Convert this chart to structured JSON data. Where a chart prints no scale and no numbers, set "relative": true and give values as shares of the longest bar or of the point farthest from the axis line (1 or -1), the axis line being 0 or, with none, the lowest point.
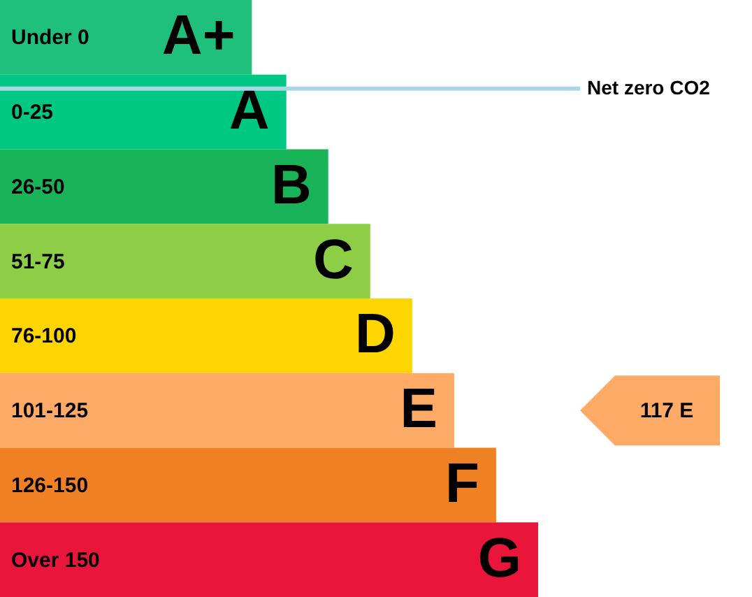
{
  "chart_data": {
    "type": "bar",
    "orientation": "horizontal",
    "relative": true,
    "categories": [
      "Under 0",
      "0-25",
      "26-50",
      "51-75",
      "76-100",
      "101-125",
      "126-150",
      "Over 150"
    ],
    "values": [
      0.468,
      0.532,
      0.61,
      0.688,
      0.766,
      0.844,
      0.922,
      1
    ],
    "colors": [
      "#1fbf7c",
      "#00c781",
      "#19b459",
      "#8dce46",
      "#ffd500",
      "#fcaa65",
      "#ef8023",
      "#e9153b"
    ],
    "ref_lines": [
      {
        "axis": "y",
        "value": "0-25",
        "label": "Net zero CO2",
        "color": "#a8d8e8"
      }
    ],
    "annotations": [
      {
        "text": "A+",
        "x": 0.468,
        "y": "Under 0"
      },
      {
        "text": "A",
        "x": 0.532,
        "y": "0-25"
      },
      {
        "text": "B",
        "x": 0.61,
        "y": "26-50"
      },
      {
        "text": "C",
        "x": 0.688,
        "y": "51-75"
      },
      {
        "text": "D",
        "x": 0.766,
        "y": "76-100"
      },
      {
        "text": "E",
        "x": 0.844,
        "y": "101-125"
      },
      {
        "text": "F",
        "x": 0.922,
        "y": "126-150"
      },
      {
        "text": "G",
        "x": 1,
        "y": "Over 150"
      },
      "117  E"
    ]
  }
}
